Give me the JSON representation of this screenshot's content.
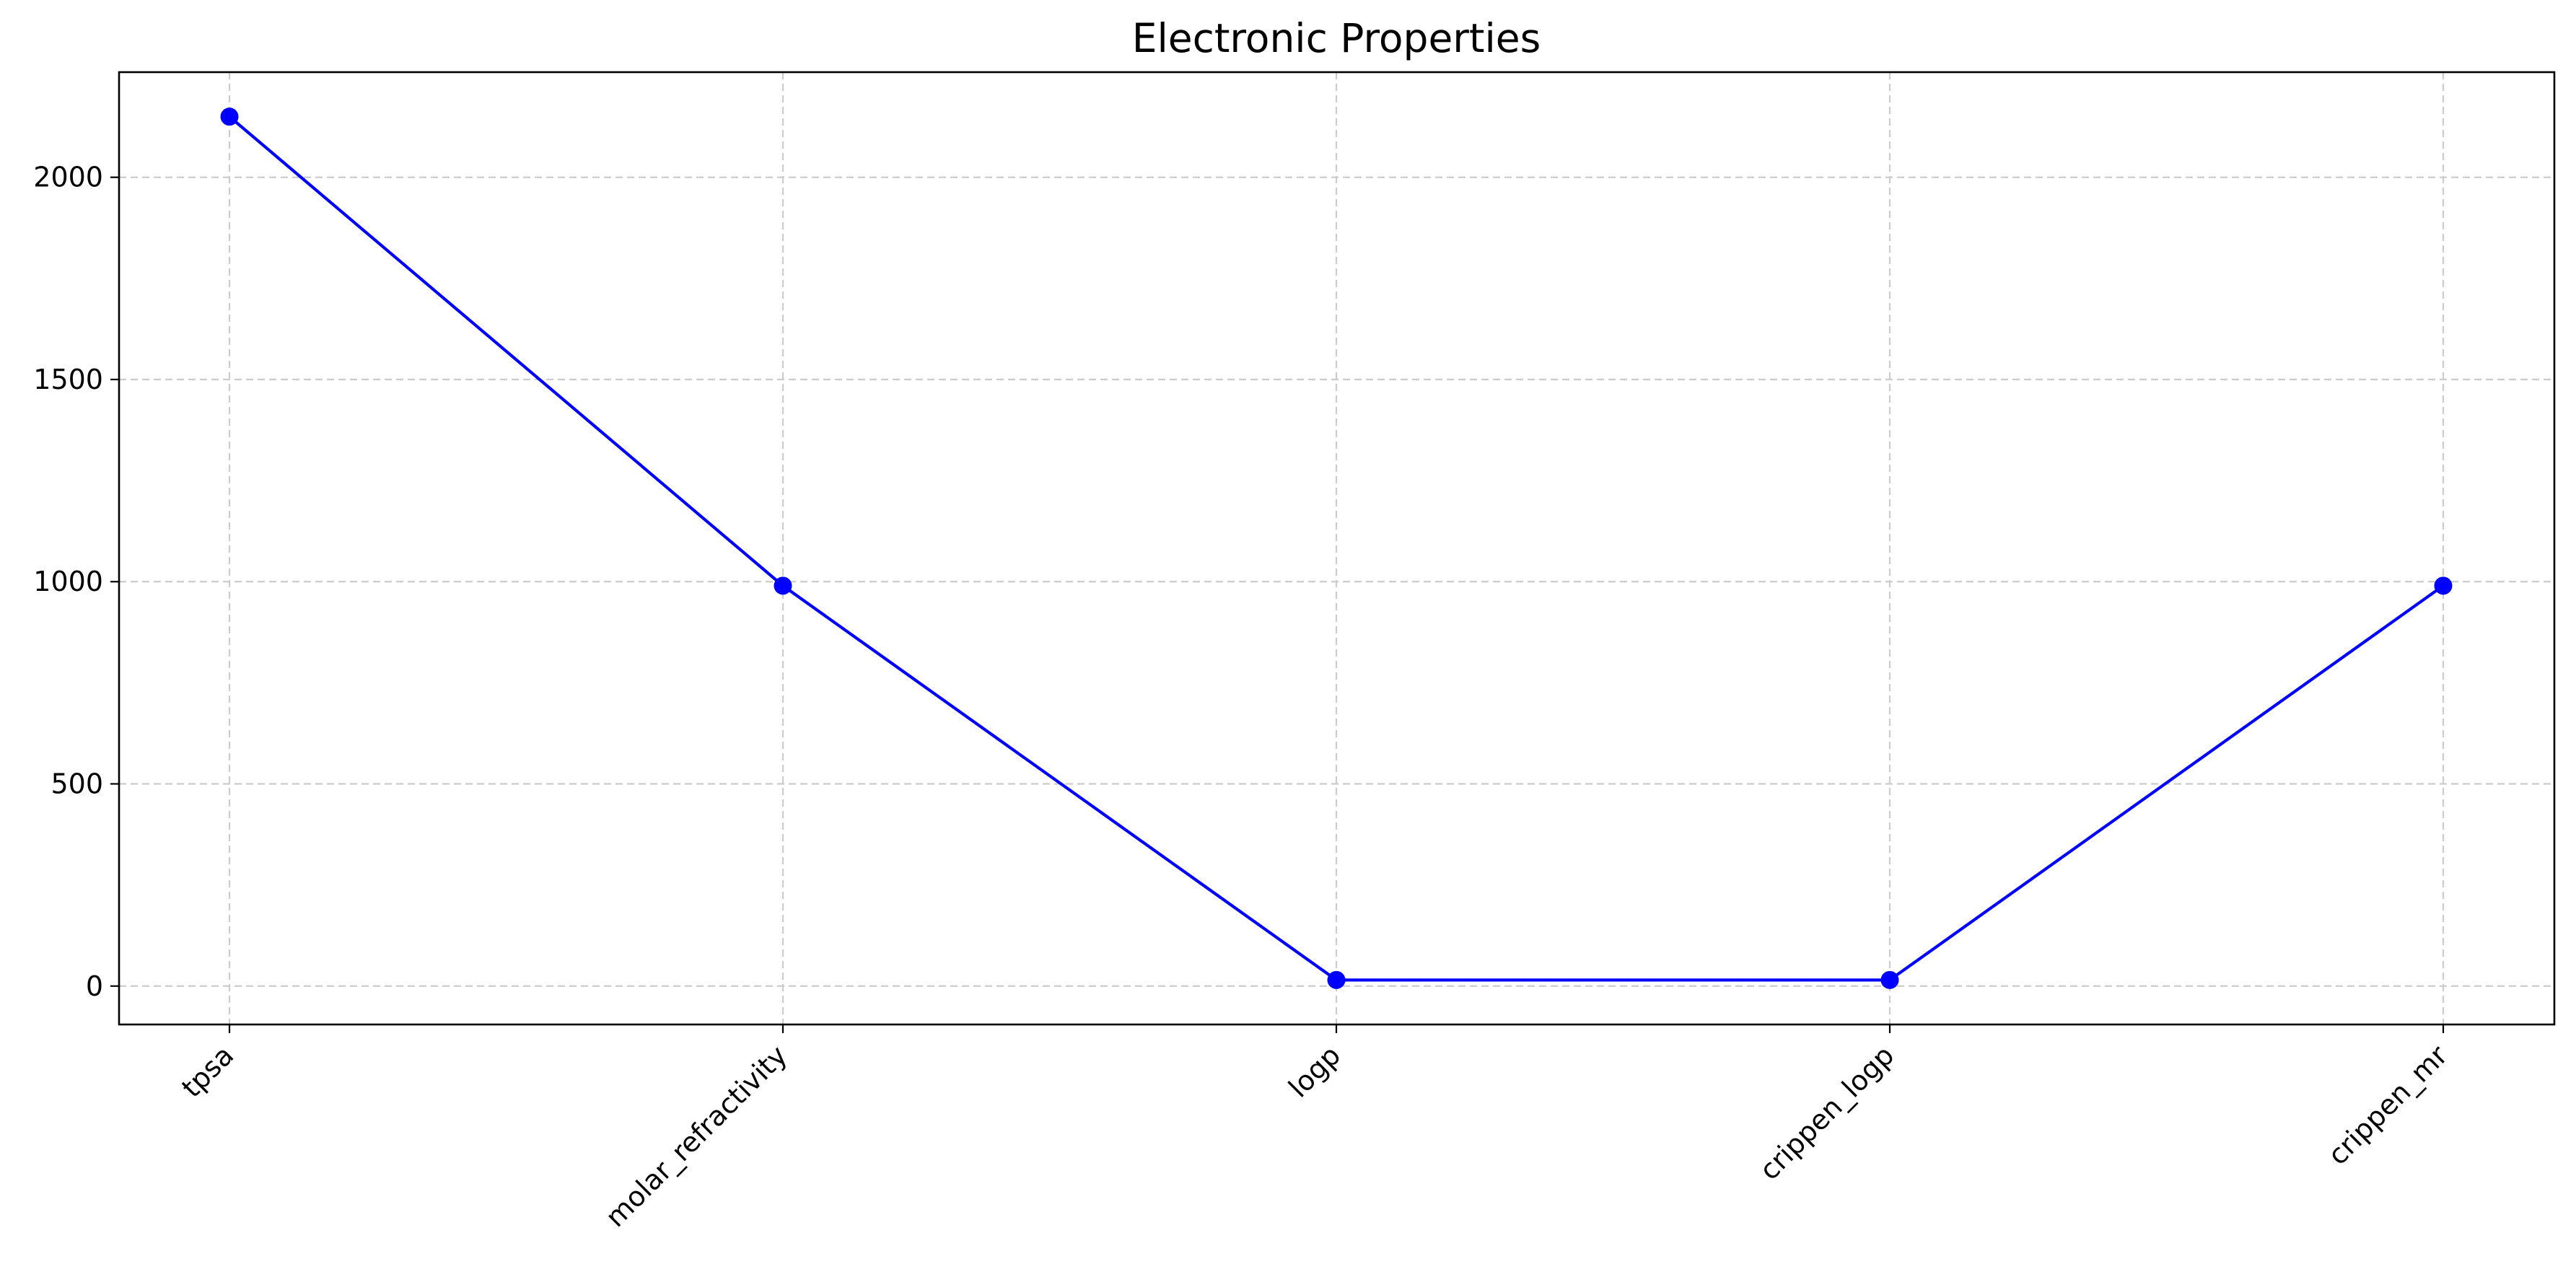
{
  "chart_data": {
    "type": "line",
    "title": "Electronic Properties",
    "xlabel": "",
    "ylabel": "",
    "categories": [
      "tpsa",
      "molar_refractivity",
      "logp",
      "crippen_logp",
      "crippen_mr"
    ],
    "series": [
      {
        "values": [
          2150,
          990,
          15,
          15,
          990
        ],
        "color": "#0000ff",
        "marker": "circle"
      }
    ],
    "ylim": [
      -95,
      2260
    ],
    "yticks": [
      0,
      500,
      1000,
      1500,
      2000
    ],
    "ytick_labels": [
      "0",
      "500",
      "1000",
      "1500",
      "2000"
    ],
    "grid": true,
    "legend": "none",
    "xtick_rotation": "45 degrees"
  }
}
